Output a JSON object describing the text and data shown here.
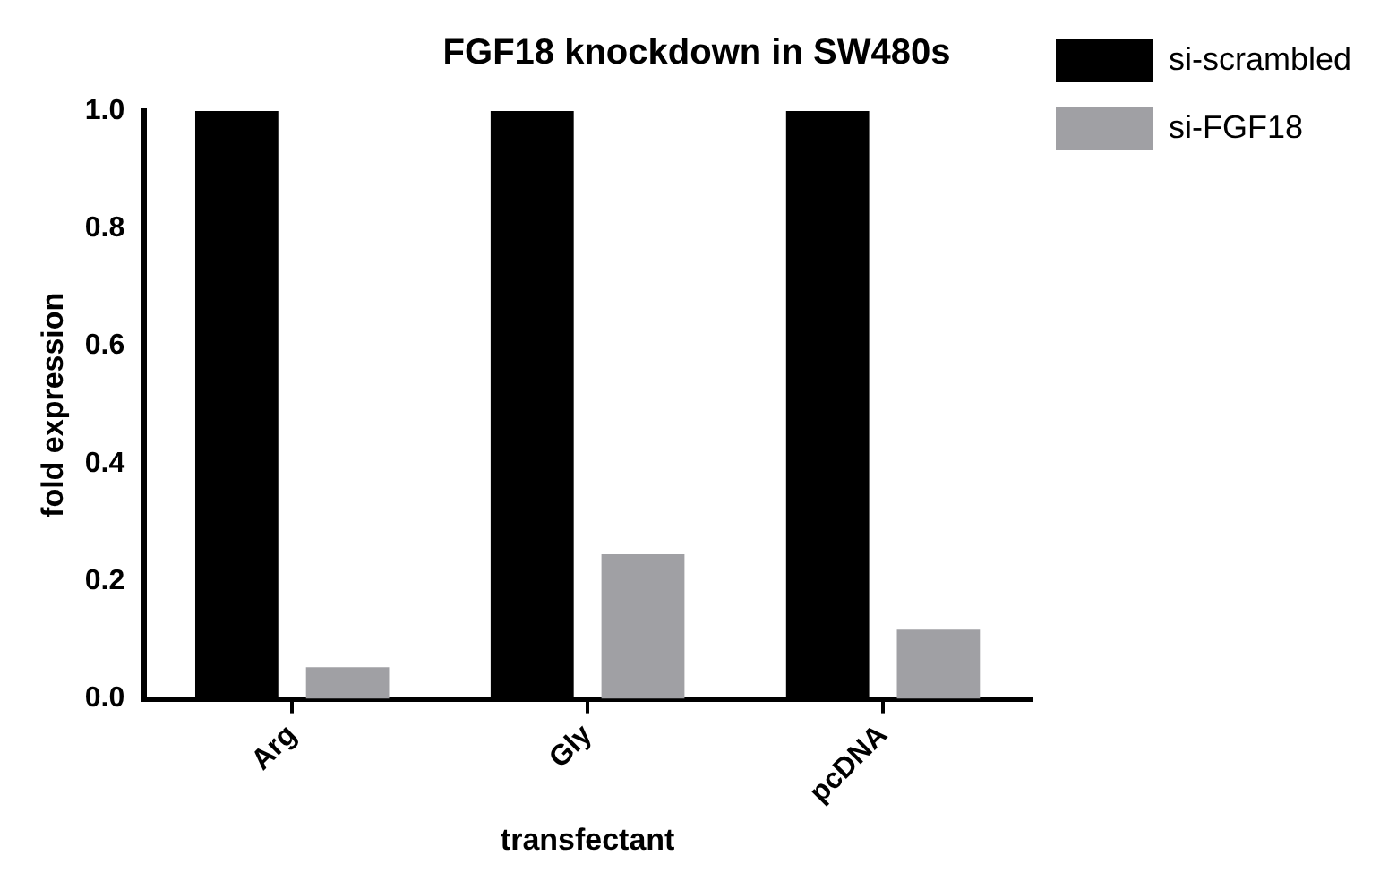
{
  "chart_data": {
    "type": "bar",
    "title": "FGF18 knockdown in SW480s",
    "xlabel": "transfectant",
    "ylabel": "fold expression",
    "categories": [
      "Arg",
      "Gly",
      "pcDNA"
    ],
    "series": [
      {
        "name": "si-scrambled",
        "color": "#000000",
        "values": [
          1.0,
          1.0,
          1.0
        ]
      },
      {
        "name": "si-FGF18",
        "color": "#a0a0a4",
        "values": [
          0.054,
          0.246,
          0.118
        ]
      }
    ],
    "ylim": [
      0,
      1.0
    ],
    "yticks": [
      {
        "value": 0,
        "label": "0.0"
      },
      {
        "value": 0.2,
        "label": "0.2"
      },
      {
        "value": 0.4,
        "label": "0.4"
      },
      {
        "value": 0.6,
        "label": "0.6"
      },
      {
        "value": 0.8,
        "label": "0.8"
      },
      {
        "value": 1.0,
        "label": "1.0"
      }
    ],
    "grid": false,
    "legend": "top right"
  }
}
